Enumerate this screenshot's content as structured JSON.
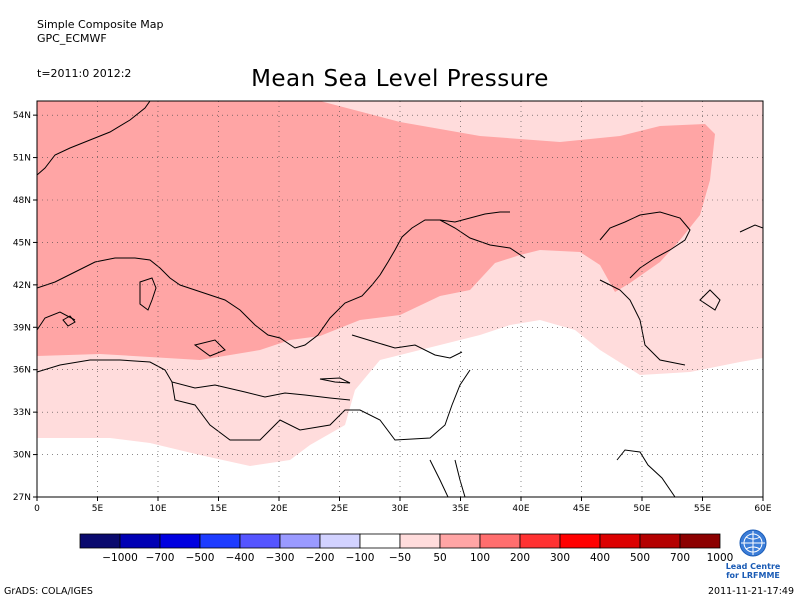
{
  "header": {
    "line1": "Simple Composite Map",
    "line2": "GPC_ECMWF",
    "time": "t=2011:0 2012:2"
  },
  "title": "Mean Sea Level Pressure",
  "axes": {
    "lat_labels": [
      "54N",
      "51N",
      "48N",
      "45N",
      "42N",
      "39N",
      "36N",
      "33N",
      "30N",
      "27N"
    ],
    "lon_labels": [
      "0",
      "5E",
      "10E",
      "15E",
      "20E",
      "25E",
      "30E",
      "35E",
      "40E",
      "45E",
      "50E",
      "55E",
      "60E"
    ],
    "lat_range": [
      27,
      55
    ],
    "lon_range": [
      0,
      60
    ]
  },
  "legend": {
    "colors": [
      "#0a0a6e",
      "#0000b4",
      "#0000e0",
      "#1e3cff",
      "#5555ff",
      "#9a9aff",
      "#d2d2ff",
      "#ffffff",
      "#ffdcdc",
      "#ffa5a5",
      "#ff6e6e",
      "#ff3232",
      "#ff0000",
      "#dc0000",
      "#b40000",
      "#8c0000"
    ],
    "labels": [
      "−1000",
      "−700",
      "−500",
      "−400",
      "−300",
      "−200",
      "−100",
      "−50",
      "50",
      "100",
      "200",
      "300",
      "400",
      "500",
      "700",
      "1000"
    ]
  },
  "logo": {
    "icon": "wmo-globe-icon",
    "line1": "Lead Centre",
    "line2": "for LRFMME"
  },
  "footer": {
    "left": "GrADS: COLA/IGES",
    "right": "2011-11-21-17:49"
  }
}
